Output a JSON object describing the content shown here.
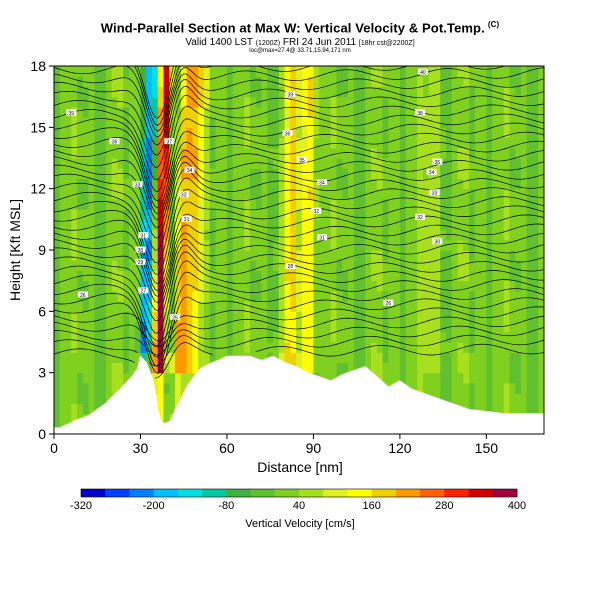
{
  "header": {
    "title": "Wind-Parallel Section at Max W: Vertical Velocity & Pot.Temp.",
    "copyright_mark": "(C)",
    "valid_line": "Valid 1400 LST",
    "valid_small": "(1200Z)",
    "valid_date": "FRI 24 Jun 2011",
    "forecast_small": "[18hr cst@2200Z]",
    "coords_line": "loc@max=27.4@ 33.71,15.94,171 nm"
  },
  "chart_data": {
    "type": "heatmap",
    "title": "Wind-Parallel Section at Max W: Vertical Velocity & Pot.Temp.",
    "xlabel": "Distance [nm]",
    "ylabel": "Height [Kft MSL]",
    "xlim": [
      0,
      170
    ],
    "ylim": [
      0,
      18
    ],
    "xticks": [
      0,
      30,
      60,
      90,
      120,
      150
    ],
    "yticks": [
      0,
      3,
      6,
      9,
      12,
      15,
      18
    ],
    "xtick_labels": [
      "0",
      "30",
      "60",
      "90",
      "120",
      "150"
    ],
    "ytick_labels": [
      "0",
      "3",
      "6",
      "9",
      "12",
      "15",
      "18"
    ],
    "colorbar": {
      "label": "Vertical Velocity [cm/s]",
      "min": -320,
      "max": 400,
      "tick_values": [
        -320,
        -200,
        -80,
        40,
        160,
        280,
        400
      ],
      "tick_labels": [
        "-320",
        "-200",
        "-80",
        "40",
        "160",
        "280",
        "400"
      ],
      "colors": [
        "#0000cc",
        "#0040ff",
        "#0080ff",
        "#00c0ff",
        "#00e0e0",
        "#00c8a0",
        "#40b040",
        "#60c030",
        "#80d020",
        "#a8e020",
        "#e0f020",
        "#ffff00",
        "#f0d000",
        "#ff9900",
        "#ff6000",
        "#ff2000",
        "#d00000",
        "#a00040"
      ]
    },
    "updraft_columns": [
      {
        "x_center": 37,
        "peak_cm_s": 360
      },
      {
        "x_center": 44,
        "peak_cm_s": 200
      },
      {
        "x_center": 48,
        "peak_cm_s": 140
      },
      {
        "x_center": 82,
        "peak_cm_s": 140
      },
      {
        "x_center": 88,
        "peak_cm_s": 130
      },
      {
        "x_center": 130,
        "peak_cm_s": 60
      }
    ],
    "downdraft_columns": [
      {
        "x_center": 32,
        "peak_cm_s": -230
      },
      {
        "x_center": 40,
        "peak_cm_s": -120
      }
    ],
    "terrain_profile": {
      "x": [
        0,
        2,
        5,
        8,
        12,
        15,
        18,
        20,
        23,
        25,
        27,
        29,
        30,
        32,
        34,
        35,
        36,
        37,
        38,
        40,
        41,
        42,
        44,
        46,
        48,
        50,
        52,
        55,
        57,
        60,
        64,
        68,
        72,
        76,
        80,
        84,
        88,
        92,
        96,
        100,
        104,
        108,
        112,
        116,
        120,
        124,
        128,
        132,
        136,
        140,
        144,
        150,
        156,
        162,
        170
      ],
      "y": [
        0.3,
        0.3,
        0.5,
        0.7,
        0.9,
        1.2,
        1.5,
        1.8,
        2.2,
        2.5,
        2.8,
        3.2,
        3.8,
        3.5,
        2.8,
        2.2,
        1.2,
        0.7,
        0.5,
        0.6,
        0.8,
        1.2,
        1.7,
        2.3,
        2.7,
        3.1,
        3.3,
        3.5,
        3.6,
        3.8,
        3.8,
        3.8,
        3.6,
        3.8,
        3.5,
        3.3,
        3.0,
        2.8,
        2.6,
        2.9,
        3.1,
        3.3,
        2.8,
        2.3,
        2.6,
        2.2,
        2.0,
        1.8,
        1.6,
        1.4,
        1.2,
        1.1,
        1.0,
        1.0,
        1.0
      ]
    },
    "theta_contours": {
      "units": "deg C",
      "labels": [
        {
          "text": "40",
          "x": 128,
          "y": 17.7
        },
        {
          "text": "39",
          "x": 82,
          "y": 16.6
        },
        {
          "text": "39",
          "x": 6,
          "y": 15.7
        },
        {
          "text": "38",
          "x": 127,
          "y": 15.7
        },
        {
          "text": "36",
          "x": 21,
          "y": 14.3
        },
        {
          "text": "36",
          "x": 81,
          "y": 14.7
        },
        {
          "text": "37",
          "x": 40,
          "y": 14.3
        },
        {
          "text": "35",
          "x": 86,
          "y": 13.4
        },
        {
          "text": "35",
          "x": 133,
          "y": 13.3
        },
        {
          "text": "34",
          "x": 47,
          "y": 12.9
        },
        {
          "text": "34",
          "x": 93,
          "y": 12.3
        },
        {
          "text": "34",
          "x": 131,
          "y": 12.8
        },
        {
          "text": "33",
          "x": 29,
          "y": 12.2
        },
        {
          "text": "33",
          "x": 45,
          "y": 11.7
        },
        {
          "text": "33",
          "x": 132,
          "y": 11.8
        },
        {
          "text": "32",
          "x": 91,
          "y": 10.9
        },
        {
          "text": "32",
          "x": 127,
          "y": 10.6
        },
        {
          "text": "31",
          "x": 46,
          "y": 10.5
        },
        {
          "text": "31",
          "x": 93,
          "y": 9.6
        },
        {
          "text": "31",
          "x": 31,
          "y": 9.7
        },
        {
          "text": "30",
          "x": 133,
          "y": 9.4
        },
        {
          "text": "30",
          "x": 30,
          "y": 9.0
        },
        {
          "text": "29",
          "x": 30,
          "y": 8.4
        },
        {
          "text": "28",
          "x": 82,
          "y": 8.2
        },
        {
          "text": "27",
          "x": 31,
          "y": 7.0
        },
        {
          "text": "26",
          "x": 10,
          "y": 6.8
        },
        {
          "text": "26",
          "x": 116,
          "y": 6.4
        },
        {
          "text": "25",
          "x": 42,
          "y": 5.7
        }
      ]
    }
  }
}
